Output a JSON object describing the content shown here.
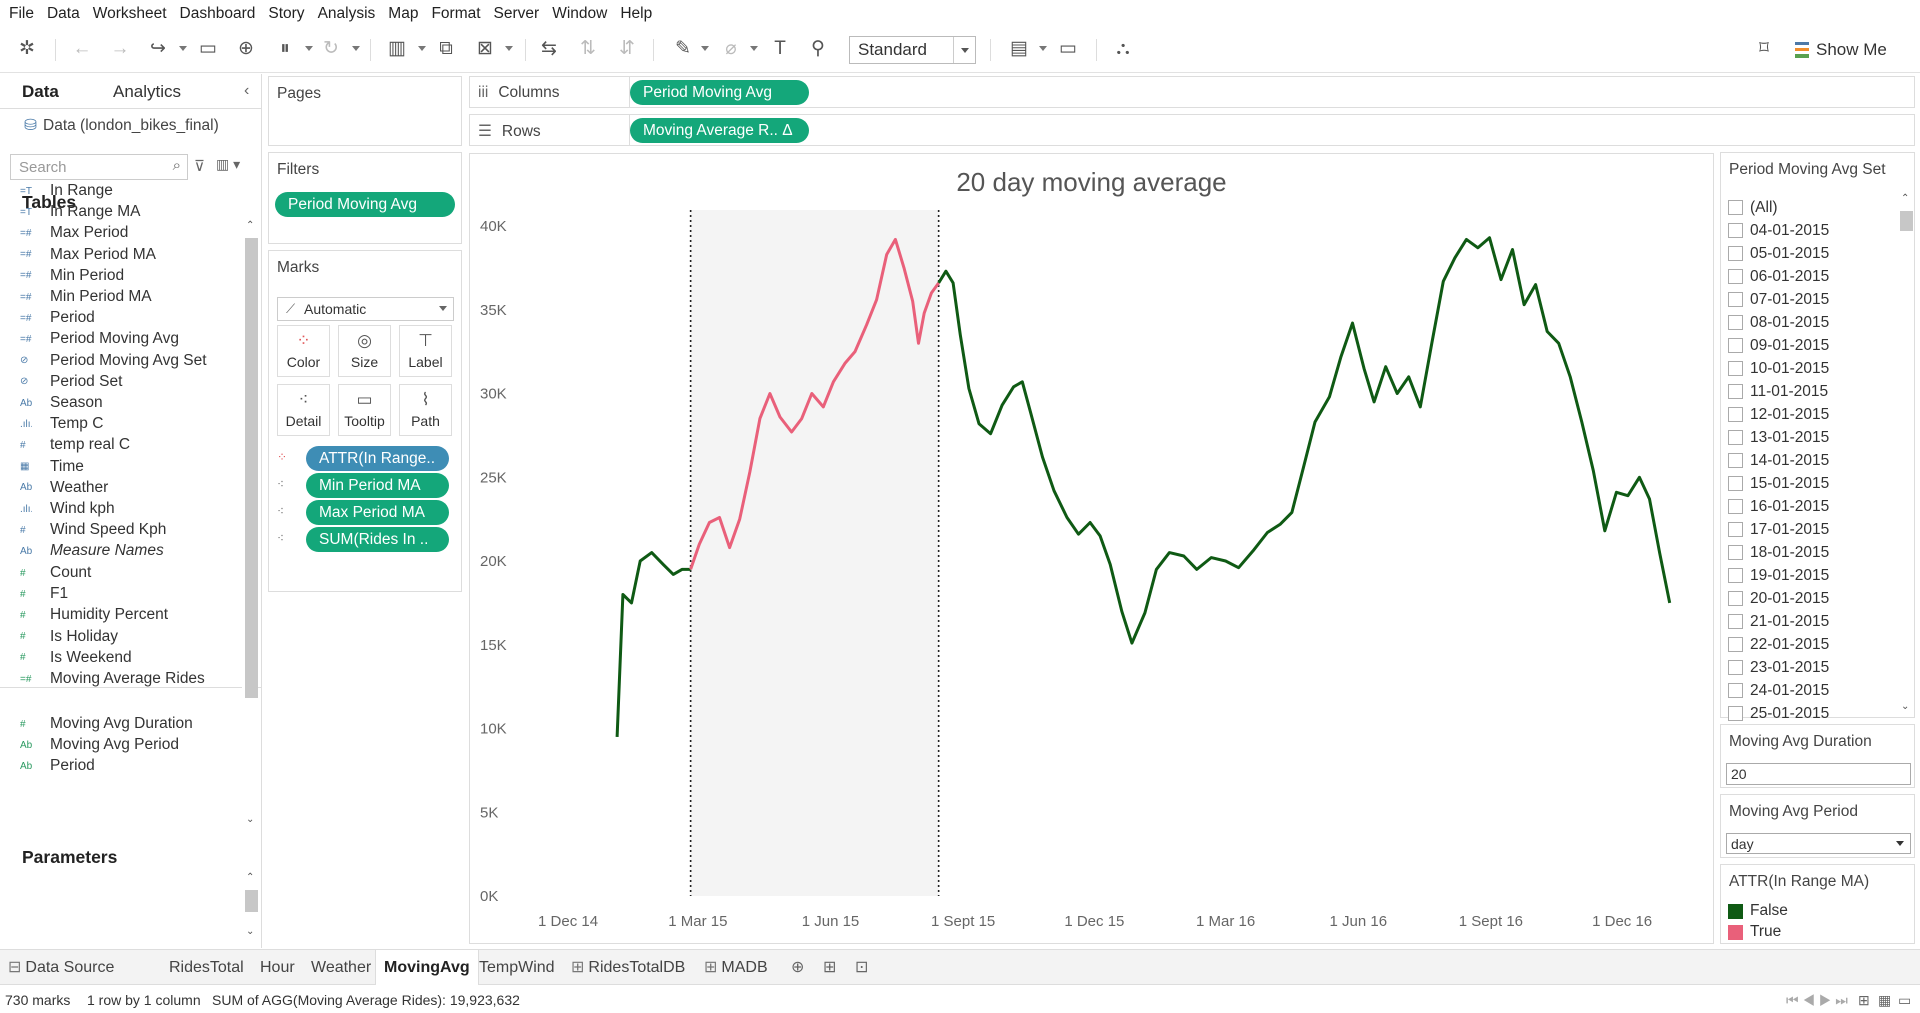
{
  "menu": [
    "File",
    "Data",
    "Worksheet",
    "Dashboard",
    "Story",
    "Analysis",
    "Map",
    "Format",
    "Server",
    "Window",
    "Help"
  ],
  "toolbar": {
    "fit_label": "Standard",
    "show_me_label": "Show Me"
  },
  "data_pane": {
    "tab_data": "Data",
    "tab_analytics": "Analytics",
    "datasource": "Data (london_bikes_final)",
    "search_placeholder": "Search",
    "tables_heading": "Tables",
    "dimensions": [
      {
        "icon": "=T|F",
        "name": "In Range"
      },
      {
        "icon": "=T|F",
        "name": "In Range MA"
      },
      {
        "icon": "=#",
        "name": "Max Period"
      },
      {
        "icon": "=#",
        "name": "Max Period MA"
      },
      {
        "icon": "=#",
        "name": "Min Period"
      },
      {
        "icon": "=#",
        "name": "Min Period MA"
      },
      {
        "icon": "=#",
        "name": "Period"
      },
      {
        "icon": "=#",
        "name": "Period Moving Avg"
      },
      {
        "icon": "set",
        "name": "Period Moving Avg Set"
      },
      {
        "icon": "set",
        "name": "Period Set"
      },
      {
        "icon": "Abc",
        "name": "Season"
      },
      {
        "icon": ".ılı.",
        "name": "Temp C"
      },
      {
        "icon": "#",
        "name": "temp real C"
      },
      {
        "icon": "cal",
        "name": "Time"
      },
      {
        "icon": "Abc",
        "name": "Weather"
      },
      {
        "icon": ".ılı.",
        "name": "Wind kph"
      },
      {
        "icon": "#",
        "name": "Wind Speed Kph"
      },
      {
        "icon": "Abc",
        "name": "Measure Names",
        "italic": true
      }
    ],
    "measures": [
      {
        "icon": "#",
        "name": "Count"
      },
      {
        "icon": "#",
        "name": "F1"
      },
      {
        "icon": "#",
        "name": "Humidity Percent"
      },
      {
        "icon": "#",
        "name": "Is Holiday"
      },
      {
        "icon": "#",
        "name": "Is Weekend"
      },
      {
        "icon": "=#",
        "name": "Moving Average Rides"
      }
    ],
    "parameters_heading": "Parameters",
    "parameters": [
      {
        "icon": "#",
        "name": "Moving Avg Duration"
      },
      {
        "icon": "Abc",
        "name": "Moving Avg Period"
      },
      {
        "icon": "Abc",
        "name": "Period"
      }
    ]
  },
  "shelves": {
    "pages_title": "Pages",
    "filters_title": "Filters",
    "filter_pill": "Period Moving Avg",
    "marks_title": "Marks",
    "marks_type": "Automatic",
    "mark_buttons": [
      "Color",
      "Size",
      "Label",
      "Detail",
      "Tooltip",
      "Path"
    ],
    "mark_pills": [
      "ATTR(In Range..",
      "Min Period MA",
      "Max Period MA",
      "SUM(Rides In .."
    ],
    "columns_label": "Columns",
    "columns_pill": "Period Moving Avg",
    "rows_label": "Rows",
    "rows_pill": "Moving Average R..  Δ"
  },
  "chart_data": {
    "type": "line",
    "title": "20 day moving average",
    "xlabel": "",
    "ylabel": "",
    "y_ticks": [
      "40K",
      "35K",
      "30K",
      "25K",
      "20K",
      "15K",
      "10K",
      "5K",
      "0K"
    ],
    "ylim": [
      0,
      40000
    ],
    "x_ticks": [
      "1 Dec 14",
      "1 Mar 15",
      "1 Jun 15",
      "1 Sept 15",
      "1 Dec 15",
      "1 Mar 16",
      "1 Jun 16",
      "1 Sept 16",
      "1 Dec 16"
    ],
    "xlim": [
      "2014-11-15",
      "2017-01-24"
    ],
    "reference_band": [
      "2015-02-24",
      "2015-08-15"
    ],
    "grid": false,
    "series": [
      {
        "name": "False",
        "color": "#0f5a14",
        "points": [
          [
            "2015-01-04",
            9500
          ],
          [
            "2015-01-08",
            18000
          ],
          [
            "2015-01-14",
            17500
          ],
          [
            "2015-01-20",
            20000
          ],
          [
            "2015-01-28",
            20500
          ],
          [
            "2015-02-05",
            19800
          ],
          [
            "2015-02-12",
            19200
          ],
          [
            "2015-02-18",
            19500
          ],
          [
            "2015-02-24",
            19500
          ]
        ]
      },
      {
        "name": "True",
        "color": "#e9607a",
        "points": [
          [
            "2015-02-24",
            19500
          ],
          [
            "2015-03-02",
            21000
          ],
          [
            "2015-03-09",
            22300
          ],
          [
            "2015-03-16",
            22600
          ],
          [
            "2015-03-23",
            20800
          ],
          [
            "2015-03-30",
            22500
          ],
          [
            "2015-04-06",
            25300
          ],
          [
            "2015-04-13",
            28500
          ],
          [
            "2015-04-20",
            30000
          ],
          [
            "2015-04-27",
            28600
          ],
          [
            "2015-05-05",
            27700
          ],
          [
            "2015-05-12",
            28500
          ],
          [
            "2015-05-19",
            30000
          ],
          [
            "2015-05-27",
            29200
          ],
          [
            "2015-06-03",
            30700
          ],
          [
            "2015-06-11",
            31800
          ],
          [
            "2015-06-18",
            32500
          ],
          [
            "2015-06-26",
            34100
          ],
          [
            "2015-07-03",
            35600
          ],
          [
            "2015-07-10",
            38300
          ],
          [
            "2015-07-16",
            39200
          ],
          [
            "2015-07-22",
            37500
          ],
          [
            "2015-07-28",
            35500
          ],
          [
            "2015-08-01",
            33000
          ],
          [
            "2015-08-05",
            34800
          ],
          [
            "2015-08-10",
            36000
          ],
          [
            "2015-08-15",
            36600
          ]
        ]
      },
      {
        "name": "False",
        "color": "#0f5a14",
        "points": [
          [
            "2015-08-15",
            36600
          ],
          [
            "2015-08-20",
            37300
          ],
          [
            "2015-08-25",
            36600
          ],
          [
            "2015-08-30",
            33500
          ],
          [
            "2015-09-05",
            30300
          ],
          [
            "2015-09-12",
            28200
          ],
          [
            "2015-09-20",
            27600
          ],
          [
            "2015-09-28",
            29300
          ],
          [
            "2015-10-06",
            30400
          ],
          [
            "2015-10-12",
            30700
          ],
          [
            "2015-10-18",
            28800
          ],
          [
            "2015-10-26",
            26200
          ],
          [
            "2015-11-03",
            24200
          ],
          [
            "2015-11-12",
            22600
          ],
          [
            "2015-11-20",
            21600
          ],
          [
            "2015-11-28",
            22300
          ],
          [
            "2015-12-05",
            21500
          ],
          [
            "2015-12-12",
            19800
          ],
          [
            "2015-12-20",
            17000
          ],
          [
            "2015-12-27",
            15100
          ],
          [
            "2016-01-05",
            16900
          ],
          [
            "2016-01-13",
            19500
          ],
          [
            "2016-01-22",
            20500
          ],
          [
            "2016-02-01",
            20300
          ],
          [
            "2016-02-10",
            19500
          ],
          [
            "2016-02-20",
            20200
          ],
          [
            "2016-03-01",
            20000
          ],
          [
            "2016-03-10",
            19600
          ],
          [
            "2016-03-20",
            20600
          ],
          [
            "2016-03-30",
            21700
          ],
          [
            "2016-04-08",
            22200
          ],
          [
            "2016-04-16",
            22900
          ],
          [
            "2016-04-24",
            25600
          ],
          [
            "2016-05-02",
            28300
          ],
          [
            "2016-05-12",
            29800
          ],
          [
            "2016-05-20",
            32200
          ],
          [
            "2016-05-28",
            34200
          ],
          [
            "2016-06-05",
            31500
          ],
          [
            "2016-06-12",
            29500
          ],
          [
            "2016-06-20",
            31600
          ],
          [
            "2016-06-28",
            30000
          ],
          [
            "2016-07-06",
            31000
          ],
          [
            "2016-07-14",
            29200
          ],
          [
            "2016-07-22",
            33000
          ],
          [
            "2016-07-30",
            36700
          ],
          [
            "2016-08-07",
            38100
          ],
          [
            "2016-08-15",
            39200
          ],
          [
            "2016-08-23",
            38700
          ],
          [
            "2016-08-31",
            39300
          ],
          [
            "2016-09-08",
            36800
          ],
          [
            "2016-09-16",
            38600
          ],
          [
            "2016-09-24",
            35300
          ],
          [
            "2016-10-02",
            36500
          ],
          [
            "2016-10-10",
            33700
          ],
          [
            "2016-10-18",
            33000
          ],
          [
            "2016-10-26",
            31000
          ],
          [
            "2016-11-03",
            28300
          ],
          [
            "2016-11-11",
            25400
          ],
          [
            "2016-11-19",
            21800
          ],
          [
            "2016-11-27",
            24100
          ],
          [
            "2016-12-05",
            23900
          ],
          [
            "2016-12-13",
            25000
          ],
          [
            "2016-12-20",
            23700
          ],
          [
            "2016-12-27",
            20500
          ],
          [
            "2017-01-03",
            17500
          ]
        ]
      }
    ]
  },
  "set_card": {
    "title": "Period Moving Avg Set",
    "items": [
      "(All)",
      "04-01-2015",
      "05-01-2015",
      "06-01-2015",
      "07-01-2015",
      "08-01-2015",
      "09-01-2015",
      "10-01-2015",
      "11-01-2015",
      "12-01-2015",
      "13-01-2015",
      "14-01-2015",
      "15-01-2015",
      "16-01-2015",
      "17-01-2015",
      "18-01-2015",
      "19-01-2015",
      "20-01-2015",
      "21-01-2015",
      "22-01-2015",
      "23-01-2015",
      "24-01-2015",
      "25-01-2015"
    ]
  },
  "duration_card": {
    "title": "Moving Avg Duration",
    "value": "20"
  },
  "period_card": {
    "title": "Moving Avg Period",
    "value": "day"
  },
  "legend_card": {
    "title": "ATTR(In Range MA)",
    "items": [
      {
        "label": "False",
        "color": "#0f5a14"
      },
      {
        "label": "True",
        "color": "#e9607a"
      }
    ]
  },
  "sheet_tabs": [
    {
      "label": "Data Source",
      "icon": "⊟"
    },
    {
      "label": "RidesTotal"
    },
    {
      "label": "Hour"
    },
    {
      "label": "Weather"
    },
    {
      "label": "MovingAvg",
      "active": true
    },
    {
      "label": "TempWind"
    },
    {
      "label": "RidesTotalDB",
      "icon": "⊞"
    },
    {
      "label": "MADB",
      "icon": "⊞"
    }
  ],
  "status": {
    "marks": "730 marks",
    "rows": "1 row by 1 column",
    "sum": "SUM of AGG(Moving Average Rides): 19,923,632"
  }
}
